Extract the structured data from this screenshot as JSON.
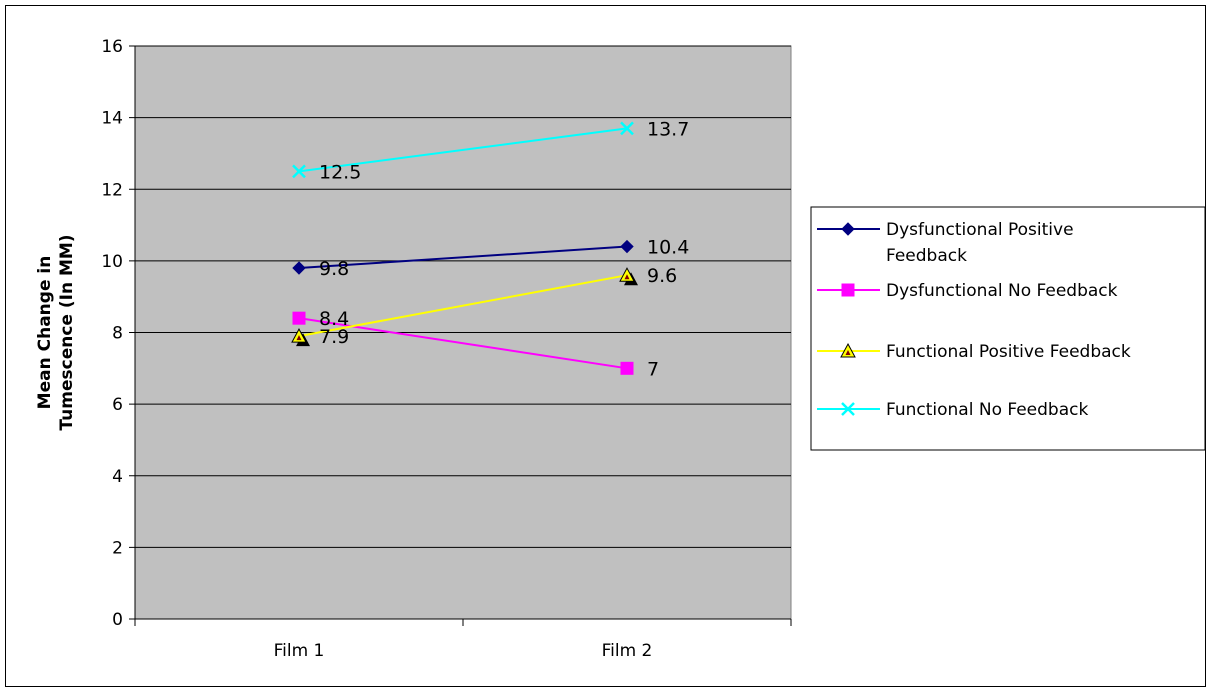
{
  "chart_data": {
    "type": "line",
    "title": "",
    "xlabel": "",
    "ylabel": [
      "Mean Change in",
      "Tumescence (In MM)"
    ],
    "categories": [
      "Film 1",
      "Film 2"
    ],
    "ylim": [
      0,
      16
    ],
    "ytick_step": 2,
    "yticks": [
      "0",
      "2",
      "4",
      "6",
      "8",
      "10",
      "12",
      "14",
      "16"
    ],
    "grid": true,
    "legend_position": "right",
    "plot_background": "#c0c0c0",
    "series": [
      {
        "name": "Dysfunctional Positive Feedback",
        "legend_lines": [
          "Dysfunctional Positive",
          "Feedback"
        ],
        "values": [
          9.8,
          10.4
        ],
        "labels": [
          "9.8",
          "10.4"
        ],
        "color": "#000080",
        "marker": "diamond"
      },
      {
        "name": "Dysfunctional No Feedback",
        "legend_lines": [
          "Dysfunctional No Feedback"
        ],
        "values": [
          8.4,
          7
        ],
        "labels": [
          "8.4",
          "7"
        ],
        "color": "#ff00ff",
        "marker": "square"
      },
      {
        "name": "Functional Positive Feedback",
        "legend_lines": [
          "Functional Positive Feedback"
        ],
        "values": [
          7.9,
          9.6
        ],
        "labels": [
          "7.9",
          "9.6"
        ],
        "color": "#ffff00",
        "marker": "triangle"
      },
      {
        "name": "Functional No Feedback",
        "legend_lines": [
          "Functional No Feedback"
        ],
        "values": [
          12.5,
          13.7
        ],
        "labels": [
          "12.5",
          "13.7"
        ],
        "color": "#00ffff",
        "marker": "x"
      }
    ]
  }
}
